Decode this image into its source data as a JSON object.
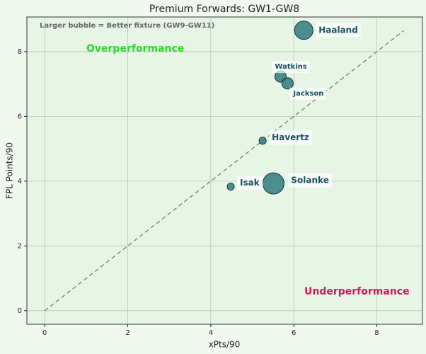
{
  "chart_data": {
    "type": "scatter",
    "title": "Premium Forwards: GW1-GW8",
    "x_label": "xPts/90",
    "y_label": "FPL Points/90",
    "labels": [
      "Haaland",
      "Watkins",
      "Jackson",
      "Havertz",
      "Solanke",
      "Isak"
    ],
    "x": [
      6.24,
      5.68,
      5.85,
      5.25,
      5.51,
      4.48
    ],
    "y": [
      8.66,
      7.23,
      7.02,
      5.25,
      3.93,
      3.83
    ],
    "sizes": [
      350,
      133,
      133,
      52,
      466,
      52
    ],
    "color": "#2f7b7c",
    "diagonal": {
      "x": [
        0,
        8.65
      ],
      "y": [
        0,
        8.65
      ]
    },
    "annotations": [
      "Larger bubble = Better fixture (GW9-GW11)",
      "Overperformance",
      "Underperformance"
    ],
    "xlim": [
      -0.43,
      9.1
    ],
    "ylim": [
      -0.42,
      9.07
    ],
    "xticks": [
      0,
      2,
      4,
      6,
      8
    ],
    "yticks": [
      0,
      2,
      4,
      6,
      8
    ],
    "grid": true
  }
}
